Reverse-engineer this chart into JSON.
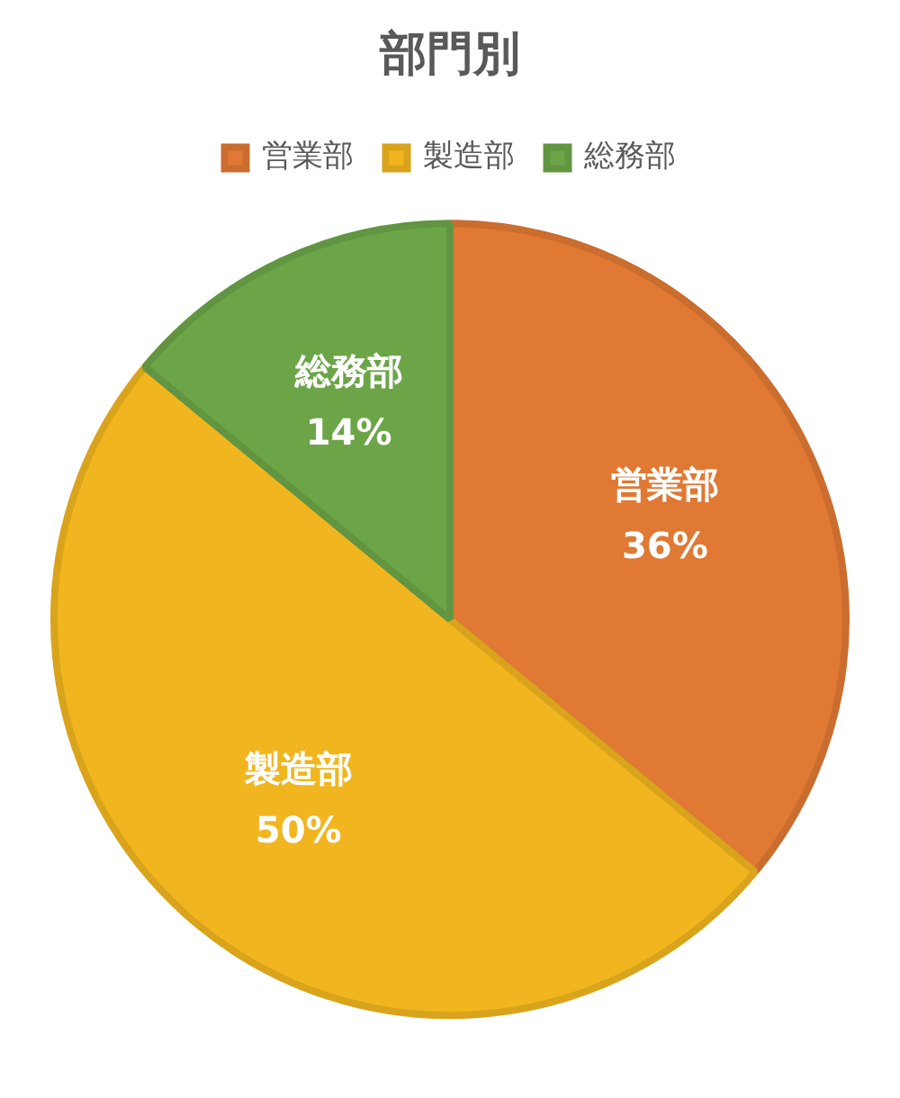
{
  "chart_data": {
    "type": "pie",
    "title": "部門別",
    "categories": [
      "営業部",
      "製造部",
      "総務部"
    ],
    "values": [
      36,
      50,
      14
    ],
    "colors": [
      "#e07933",
      "#f1b61f",
      "#6ca548"
    ],
    "value_labels": [
      "36%",
      "50%",
      "14%"
    ],
    "legend": "top"
  }
}
